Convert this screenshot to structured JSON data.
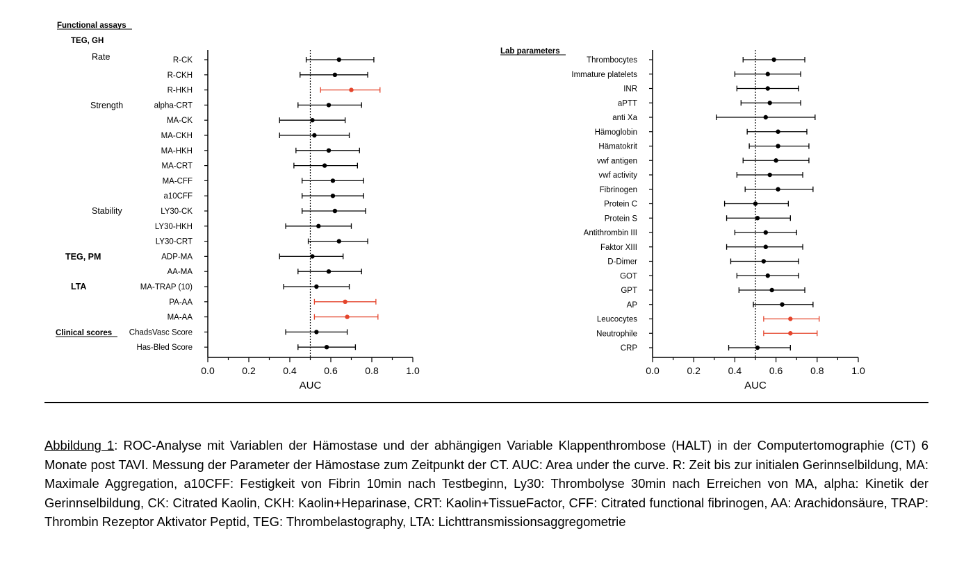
{
  "colors": {
    "significant": "#e4452c",
    "normal": "#000000"
  },
  "left_panel": {
    "section_header": "Functional assays",
    "subheaders": {
      "teg_gh": "TEG, GH",
      "teg_pm": "TEG, PM",
      "lta": "LTA",
      "clinical": "Clinical scores"
    },
    "groups": {
      "rate": "Rate",
      "strength": "Strength",
      "stability": "Stability"
    }
  },
  "right_panel": {
    "section_header": "Lab parameters"
  },
  "chart_data": [
    {
      "type": "forest",
      "xlabel": "AUC",
      "xlim": [
        0.0,
        1.0
      ],
      "xticks": [
        "0.0",
        "0.2",
        "0.4",
        "0.6",
        "0.8",
        "1.0"
      ],
      "reference_line": 0.5,
      "rows": [
        {
          "label": "R-CK",
          "auc": 0.64,
          "lo": 0.48,
          "hi": 0.81,
          "significant": false
        },
        {
          "label": "R-CKH",
          "auc": 0.62,
          "lo": 0.45,
          "hi": 0.78,
          "significant": false
        },
        {
          "label": "R-HKH",
          "auc": 0.7,
          "lo": 0.55,
          "hi": 0.84,
          "significant": true
        },
        {
          "label": "alpha-CRT",
          "auc": 0.59,
          "lo": 0.44,
          "hi": 0.75,
          "significant": false
        },
        {
          "label": "MA-CK",
          "auc": 0.51,
          "lo": 0.35,
          "hi": 0.67,
          "significant": false
        },
        {
          "label": "MA-CKH",
          "auc": 0.52,
          "lo": 0.35,
          "hi": 0.69,
          "significant": false
        },
        {
          "label": "MA-HKH",
          "auc": 0.59,
          "lo": 0.43,
          "hi": 0.74,
          "significant": false
        },
        {
          "label": "MA-CRT",
          "auc": 0.57,
          "lo": 0.42,
          "hi": 0.73,
          "significant": false
        },
        {
          "label": "MA-CFF",
          "auc": 0.61,
          "lo": 0.46,
          "hi": 0.76,
          "significant": false
        },
        {
          "label": "a10CFF",
          "auc": 0.61,
          "lo": 0.46,
          "hi": 0.76,
          "significant": false
        },
        {
          "label": "LY30-CK",
          "auc": 0.62,
          "lo": 0.46,
          "hi": 0.77,
          "significant": false
        },
        {
          "label": "LY30-HKH",
          "auc": 0.54,
          "lo": 0.38,
          "hi": 0.7,
          "significant": false
        },
        {
          "label": "LY30-CRT",
          "auc": 0.64,
          "lo": 0.49,
          "hi": 0.78,
          "significant": false
        },
        {
          "label": "ADP-MA",
          "auc": 0.51,
          "lo": 0.35,
          "hi": 0.66,
          "significant": false
        },
        {
          "label": "AA-MA",
          "auc": 0.59,
          "lo": 0.44,
          "hi": 0.75,
          "significant": false
        },
        {
          "label": "MA-TRAP (10)",
          "auc": 0.53,
          "lo": 0.37,
          "hi": 0.69,
          "significant": false
        },
        {
          "label": "PA-AA",
          "auc": 0.67,
          "lo": 0.52,
          "hi": 0.82,
          "significant": true
        },
        {
          "label": "MA-AA",
          "auc": 0.68,
          "lo": 0.52,
          "hi": 0.83,
          "significant": true
        },
        {
          "label": "ChadsVasc Score",
          "auc": 0.53,
          "lo": 0.38,
          "hi": 0.68,
          "significant": false
        },
        {
          "label": "Has-Bled Score",
          "auc": 0.58,
          "lo": 0.44,
          "hi": 0.72,
          "significant": false
        }
      ]
    },
    {
      "type": "forest",
      "xlabel": "AUC",
      "xlim": [
        0.0,
        1.0
      ],
      "xticks": [
        "0.0",
        "0.2",
        "0.4",
        "0.6",
        "0.8",
        "1.0"
      ],
      "reference_line": 0.5,
      "rows": [
        {
          "label": "Thrombocytes",
          "auc": 0.59,
          "lo": 0.44,
          "hi": 0.74,
          "significant": false
        },
        {
          "label": "Immature platelets",
          "auc": 0.56,
          "lo": 0.4,
          "hi": 0.72,
          "significant": false
        },
        {
          "label": "INR",
          "auc": 0.56,
          "lo": 0.41,
          "hi": 0.71,
          "significant": false
        },
        {
          "label": "aPTT",
          "auc": 0.57,
          "lo": 0.43,
          "hi": 0.72,
          "significant": false
        },
        {
          "label": "anti Xa",
          "auc": 0.55,
          "lo": 0.31,
          "hi": 0.79,
          "significant": false
        },
        {
          "label": "Hämoglobin",
          "auc": 0.61,
          "lo": 0.46,
          "hi": 0.75,
          "significant": false
        },
        {
          "label": "Hämatokrit",
          "auc": 0.61,
          "lo": 0.47,
          "hi": 0.76,
          "significant": false
        },
        {
          "label": "vwf antigen",
          "auc": 0.6,
          "lo": 0.44,
          "hi": 0.76,
          "significant": false
        },
        {
          "label": "vwf activity",
          "auc": 0.57,
          "lo": 0.41,
          "hi": 0.73,
          "significant": false
        },
        {
          "label": "Fibrinogen",
          "auc": 0.61,
          "lo": 0.45,
          "hi": 0.78,
          "significant": false
        },
        {
          "label": "Protein C",
          "auc": 0.5,
          "lo": 0.35,
          "hi": 0.66,
          "significant": false
        },
        {
          "label": "Protein S",
          "auc": 0.51,
          "lo": 0.36,
          "hi": 0.67,
          "significant": false
        },
        {
          "label": "Antithrombin III",
          "auc": 0.55,
          "lo": 0.4,
          "hi": 0.7,
          "significant": false
        },
        {
          "label": "Faktor XIII",
          "auc": 0.55,
          "lo": 0.36,
          "hi": 0.73,
          "significant": false
        },
        {
          "label": "D-Dimer",
          "auc": 0.54,
          "lo": 0.38,
          "hi": 0.71,
          "significant": false
        },
        {
          "label": "GOT",
          "auc": 0.56,
          "lo": 0.41,
          "hi": 0.71,
          "significant": false
        },
        {
          "label": "GPT",
          "auc": 0.58,
          "lo": 0.42,
          "hi": 0.74,
          "significant": false
        },
        {
          "label": "AP",
          "auc": 0.63,
          "lo": 0.49,
          "hi": 0.78,
          "significant": false
        },
        {
          "label": "Leucocytes",
          "auc": 0.67,
          "lo": 0.54,
          "hi": 0.81,
          "significant": true
        },
        {
          "label": "Neutrophile",
          "auc": 0.67,
          "lo": 0.54,
          "hi": 0.8,
          "significant": true
        },
        {
          "label": "CRP",
          "auc": 0.51,
          "lo": 0.37,
          "hi": 0.67,
          "significant": false
        }
      ]
    }
  ],
  "caption": {
    "label": "Abbildung 1",
    "text": ": ROC-Analyse mit Variablen der Hämostase und der abhängigen Variable Klappenthrombose (HALT) in der Computertomographie (CT) 6 Monate post TAVI.  Messung der Parameter der Hämostase zum Zeitpunkt der CT. AUC: Area under the curve. R: Zeit bis zur initialen Gerinnselbildung, MA: Maximale Aggregation, a10CFF: Festigkeit von Fibrin 10min nach Testbeginn, Ly30: Thrombolyse 30min nach Erreichen von MA, alpha: Kinetik der Gerinnselbildung, CK: Citrated Kaolin, CKH: Kaolin+Heparinase, CRT: Kaolin+TissueFactor, CFF: Citrated functional fibrinogen, AA: Arachidonsäure, TRAP: Thrombin Rezeptor Aktivator Peptid, TEG: Thrombelastography, LTA: Lichttransmissionsaggregometrie"
  }
}
